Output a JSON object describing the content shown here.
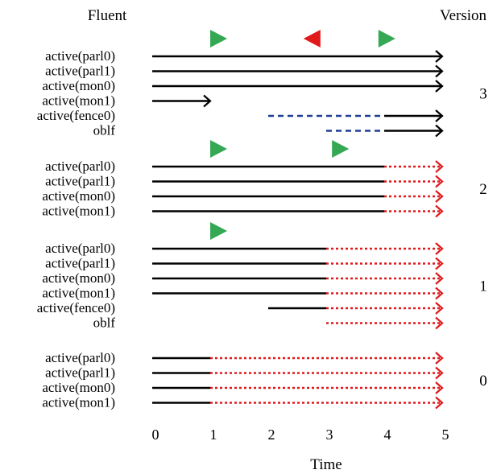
{
  "header": {
    "fluent_label": "Fluent",
    "version_label": "Version"
  },
  "axis": {
    "label": "Time",
    "min": 0,
    "max": 5,
    "ticks": [
      "0",
      "1",
      "2",
      "3",
      "4",
      "5"
    ]
  },
  "colors": {
    "solid": "#000000",
    "dotted": "#e0191b",
    "dashed": "#1f3f94",
    "play": "#34a853",
    "rewind": "#e0191b"
  },
  "groups": [
    {
      "version": "3",
      "markers": [
        {
          "t": 1,
          "dir": "right"
        },
        {
          "t": 2.9,
          "dir": "left"
        },
        {
          "t": 3.9,
          "dir": "right"
        }
      ],
      "rows": [
        {
          "label": "active(parl0)",
          "segments": [
            {
              "style": "solid",
              "start": 0,
              "end": 5,
              "arrow": "solid"
            }
          ]
        },
        {
          "label": "active(parl1)",
          "segments": [
            {
              "style": "solid",
              "start": 0,
              "end": 5,
              "arrow": "solid"
            }
          ]
        },
        {
          "label": "active(mon0)",
          "segments": [
            {
              "style": "solid",
              "start": 0,
              "end": 5,
              "arrow": "solid"
            }
          ]
        },
        {
          "label": "active(mon1)",
          "segments": [
            {
              "style": "solid",
              "start": 0,
              "end": 1,
              "arrow": "solid"
            }
          ]
        },
        {
          "label": "active(fence0)",
          "segments": [
            {
              "style": "dashed",
              "start": 2,
              "end": 4
            },
            {
              "style": "solid",
              "start": 4,
              "end": 5,
              "arrow": "solid"
            }
          ]
        },
        {
          "label": "oblf",
          "segments": [
            {
              "style": "dashed",
              "start": 3,
              "end": 4
            },
            {
              "style": "solid",
              "start": 4,
              "end": 5,
              "arrow": "solid"
            }
          ]
        }
      ]
    },
    {
      "version": "2",
      "markers": [
        {
          "t": 1,
          "dir": "right"
        },
        {
          "t": 3.1,
          "dir": "right"
        }
      ],
      "rows": [
        {
          "label": "active(parl0)",
          "segments": [
            {
              "style": "solid",
              "start": 0,
              "end": 4
            },
            {
              "style": "dotted",
              "start": 4,
              "end": 5,
              "arrow": "dotted"
            }
          ]
        },
        {
          "label": "active(parl1)",
          "segments": [
            {
              "style": "solid",
              "start": 0,
              "end": 4
            },
            {
              "style": "dotted",
              "start": 4,
              "end": 5,
              "arrow": "dotted"
            }
          ]
        },
        {
          "label": "active(mon0)",
          "segments": [
            {
              "style": "solid",
              "start": 0,
              "end": 4
            },
            {
              "style": "dotted",
              "start": 4,
              "end": 5,
              "arrow": "dotted"
            }
          ]
        },
        {
          "label": "active(mon1)",
          "segments": [
            {
              "style": "solid",
              "start": 0,
              "end": 4
            },
            {
              "style": "dotted",
              "start": 4,
              "end": 5,
              "arrow": "dotted"
            }
          ]
        }
      ]
    },
    {
      "version": "1",
      "markers": [
        {
          "t": 1,
          "dir": "right"
        }
      ],
      "rows": [
        {
          "label": "active(parl0)",
          "segments": [
            {
              "style": "solid",
              "start": 0,
              "end": 3
            },
            {
              "style": "dotted",
              "start": 3,
              "end": 5,
              "arrow": "dotted"
            }
          ]
        },
        {
          "label": "active(parl1)",
          "segments": [
            {
              "style": "solid",
              "start": 0,
              "end": 3
            },
            {
              "style": "dotted",
              "start": 3,
              "end": 5,
              "arrow": "dotted"
            }
          ]
        },
        {
          "label": "active(mon0)",
          "segments": [
            {
              "style": "solid",
              "start": 0,
              "end": 3
            },
            {
              "style": "dotted",
              "start": 3,
              "end": 5,
              "arrow": "dotted"
            }
          ]
        },
        {
          "label": "active(mon1)",
          "segments": [
            {
              "style": "solid",
              "start": 0,
              "end": 3
            },
            {
              "style": "dotted",
              "start": 3,
              "end": 5,
              "arrow": "dotted"
            }
          ]
        },
        {
          "label": "active(fence0)",
          "segments": [
            {
              "style": "solid",
              "start": 2,
              "end": 3
            },
            {
              "style": "dotted",
              "start": 3,
              "end": 5,
              "arrow": "dotted"
            }
          ]
        },
        {
          "label": "oblf",
          "segments": [
            {
              "style": "dotted",
              "start": 3,
              "end": 5,
              "arrow": "dotted"
            }
          ]
        }
      ]
    },
    {
      "version": "0",
      "markers": [],
      "rows": [
        {
          "label": "active(parl0)",
          "segments": [
            {
              "style": "solid",
              "start": 0,
              "end": 1
            },
            {
              "style": "dotted",
              "start": 1,
              "end": 5,
              "arrow": "dotted"
            }
          ]
        },
        {
          "label": "active(parl1)",
          "segments": [
            {
              "style": "solid",
              "start": 0,
              "end": 1
            },
            {
              "style": "dotted",
              "start": 1,
              "end": 5,
              "arrow": "dotted"
            }
          ]
        },
        {
          "label": "active(mon0)",
          "segments": [
            {
              "style": "solid",
              "start": 0,
              "end": 1
            },
            {
              "style": "dotted",
              "start": 1,
              "end": 5,
              "arrow": "dotted"
            }
          ]
        },
        {
          "label": "active(mon1)",
          "segments": [
            {
              "style": "solid",
              "start": 0,
              "end": 1
            },
            {
              "style": "dotted",
              "start": 1,
              "end": 5,
              "arrow": "dotted"
            }
          ]
        }
      ]
    }
  ]
}
